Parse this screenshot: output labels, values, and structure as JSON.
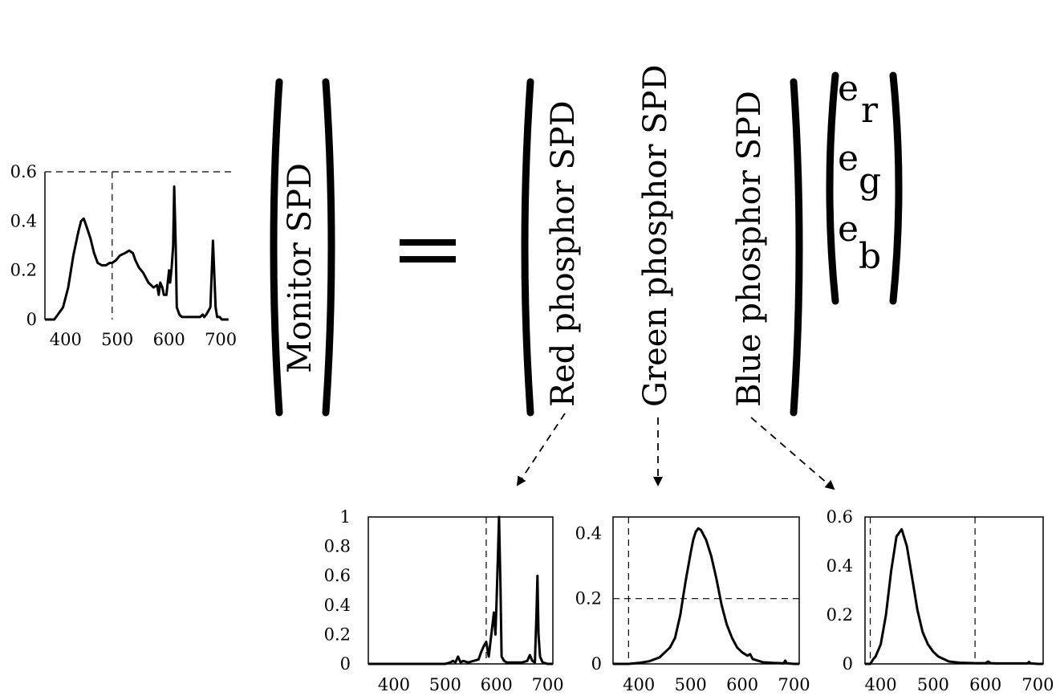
{
  "equation": {
    "lhs_label": "Monitor SPD",
    "equals": "=",
    "columns": [
      "Red phosphor SPD",
      "Green phosphor SPD",
      "Blue phosphor SPD"
    ],
    "vector": [
      {
        "base": "e",
        "sub": "r"
      },
      {
        "base": "e",
        "sub": "g"
      },
      {
        "base": "e",
        "sub": "b"
      }
    ]
  },
  "chart_data": [
    {
      "id": "monitor",
      "type": "line",
      "title": "",
      "xlim": [
        360,
        720
      ],
      "ylim": [
        0,
        0.6
      ],
      "xticks": [
        "400",
        "500",
        "600",
        "700"
      ],
      "yticks": [
        "0",
        "0.2",
        "0.4",
        "0.6"
      ],
      "grid_lines": {
        "x": [
          490
        ],
        "y": [
          0.6
        ]
      },
      "series": [
        {
          "x": [
            360,
            378,
            385,
            395,
            405,
            415,
            425,
            430,
            435,
            440,
            448,
            455,
            462,
            470,
            478,
            485,
            490,
            497,
            505,
            515,
            523,
            530,
            535,
            542,
            550,
            560,
            570,
            577,
            580,
            583,
            587,
            590,
            595,
            600,
            602,
            605,
            608,
            610,
            613,
            615,
            620,
            625,
            630,
            640,
            650,
            660,
            665,
            668,
            672,
            680,
            685,
            690,
            693,
            695,
            698,
            702,
            708,
            715
          ],
          "y": [
            0,
            0,
            0.02,
            0.05,
            0.13,
            0.26,
            0.36,
            0.4,
            0.41,
            0.38,
            0.33,
            0.27,
            0.23,
            0.22,
            0.22,
            0.23,
            0.23,
            0.24,
            0.26,
            0.27,
            0.28,
            0.27,
            0.24,
            0.21,
            0.19,
            0.15,
            0.13,
            0.14,
            0.1,
            0.15,
            0.13,
            0.1,
            0.1,
            0.2,
            0.15,
            0.21,
            0.3,
            0.54,
            0.3,
            0.05,
            0.02,
            0.01,
            0.01,
            0.01,
            0.01,
            0.01,
            0.02,
            0.01,
            0.02,
            0.05,
            0.32,
            0.05,
            0.01,
            0.01,
            0.01,
            0,
            0,
            0
          ]
        }
      ]
    },
    {
      "id": "red",
      "type": "line",
      "title": "",
      "xlim": [
        350,
        710
      ],
      "ylim": [
        0,
        1
      ],
      "xticks": [
        "400",
        "500",
        "600",
        "700"
      ],
      "yticks": [
        "0",
        "0.2",
        "0.4",
        "0.6",
        "0.8",
        "1"
      ],
      "grid_lines": {
        "x": [
          580
        ],
        "y": []
      },
      "series": [
        {
          "x": [
            350,
            500,
            510,
            515,
            520,
            525,
            530,
            535,
            545,
            555,
            565,
            570,
            575,
            580,
            585,
            590,
            595,
            598,
            600,
            603,
            605,
            608,
            610,
            615,
            620,
            650,
            660,
            665,
            670,
            675,
            678,
            680,
            682,
            685,
            690,
            700,
            710
          ],
          "y": [
            0,
            0,
            0.01,
            0.02,
            0.01,
            0.05,
            0.01,
            0.02,
            0.01,
            0.02,
            0.03,
            0.08,
            0.12,
            0.15,
            0.05,
            0.2,
            0.35,
            0.2,
            0.4,
            0.75,
            1.0,
            0.5,
            0.05,
            0.02,
            0.01,
            0.01,
            0.02,
            0.06,
            0.02,
            0.01,
            0.35,
            0.6,
            0.2,
            0.05,
            0.01,
            0,
            0
          ]
        }
      ]
    },
    {
      "id": "green",
      "type": "line",
      "title": "",
      "xlim": [
        350,
        710
      ],
      "ylim": [
        0,
        0.45
      ],
      "xticks": [
        "400",
        "500",
        "600",
        "700"
      ],
      "yticks": [
        "0",
        "0.2",
        "0.4"
      ],
      "grid_lines": {
        "x": [
          380
        ],
        "y": [
          0.2
        ]
      },
      "series": [
        {
          "x": [
            350,
            380,
            400,
            420,
            440,
            460,
            470,
            480,
            490,
            500,
            505,
            510,
            515,
            520,
            530,
            540,
            550,
            560,
            570,
            580,
            590,
            600,
            610,
            615,
            620,
            630,
            640,
            660,
            680,
            683,
            686,
            700,
            710
          ],
          "y": [
            0,
            0,
            0.003,
            0.008,
            0.02,
            0.05,
            0.08,
            0.15,
            0.25,
            0.34,
            0.38,
            0.405,
            0.415,
            0.41,
            0.38,
            0.33,
            0.26,
            0.18,
            0.12,
            0.08,
            0.05,
            0.035,
            0.025,
            0.03,
            0.015,
            0.01,
            0.005,
            0.003,
            0.002,
            0.01,
            0.002,
            0,
            0
          ]
        }
      ]
    },
    {
      "id": "blue",
      "type": "line",
      "title": "",
      "xlim": [
        370,
        710
      ],
      "ylim": [
        0,
        0.6
      ],
      "xticks": [
        "400",
        "500",
        "600",
        "700"
      ],
      "yticks": [
        "0",
        "0.2",
        "0.4",
        "0.6"
      ],
      "grid_lines": {
        "x": [
          380,
          580
        ],
        "y": []
      },
      "series": [
        {
          "x": [
            370,
            380,
            383,
            386,
            390,
            400,
            410,
            420,
            430,
            440,
            450,
            460,
            470,
            480,
            490,
            500,
            510,
            520,
            530,
            550,
            580,
            600,
            605,
            610,
            620,
            680,
            683,
            686,
            700,
            710
          ],
          "y": [
            0,
            0,
            0.01,
            0.02,
            0.03,
            0.08,
            0.2,
            0.38,
            0.52,
            0.55,
            0.48,
            0.35,
            0.22,
            0.13,
            0.08,
            0.05,
            0.03,
            0.02,
            0.01,
            0.005,
            0.003,
            0.003,
            0.01,
            0.003,
            0.002,
            0.002,
            0.008,
            0.002,
            0,
            0
          ]
        }
      ]
    }
  ]
}
